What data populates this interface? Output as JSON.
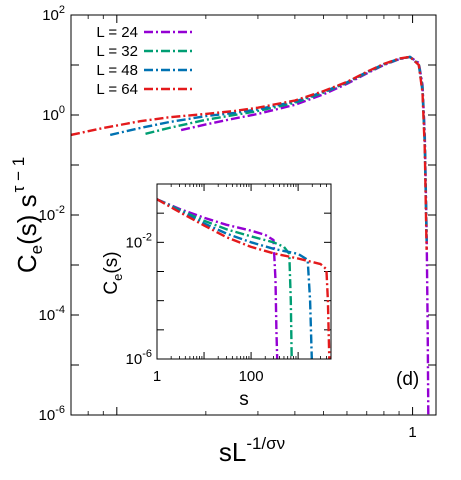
{
  "chart_data": [
    {
      "type": "line",
      "title": "",
      "xlabel": "sL",
      "xlabel_superscript": "-1/σν",
      "ylabel": "C",
      "ylabel_subscript": "e",
      "ylabel_middle": "(s) s",
      "ylabel_superscript": "τ − 1",
      "xscale": "log",
      "yscale": "log",
      "xlim": [
        0.07,
        1.2
      ],
      "ylim": [
        1e-06,
        100
      ],
      "x_tick_labels": [
        {
          "value": 1,
          "label": "1"
        }
      ],
      "y_tick_labels": [
        {
          "value": 100,
          "base": "10",
          "exp": "2"
        },
        {
          "value": 1,
          "base": "10",
          "exp": "0"
        },
        {
          "value": 0.01,
          "base": "10",
          "exp": "-2"
        },
        {
          "value": 0.0001,
          "base": "10",
          "exp": "-4"
        },
        {
          "value": 1e-06,
          "base": "10",
          "exp": "-6"
        }
      ],
      "annotation": "(d)",
      "legend_placement": "top-left",
      "series": [
        {
          "name": "L = 24",
          "color": "#9400d3",
          "x": [
            0.165,
            0.2,
            0.25,
            0.3,
            0.4,
            0.5,
            0.6,
            0.7,
            0.8,
            0.9,
            0.98,
            1.05,
            1.08,
            1.1,
            1.115,
            1.125,
            1.13
          ],
          "y": [
            0.5,
            0.65,
            0.85,
            1.05,
            1.6,
            2.6,
            4.2,
            6.8,
            10,
            13,
            14.5,
            11,
            4,
            0.4,
            0.005,
            5e-05,
            1e-06
          ]
        },
        {
          "name": "L = 32",
          "color": "#009e73",
          "x": [
            0.125,
            0.15,
            0.2,
            0.25,
            0.3,
            0.4,
            0.5,
            0.6,
            0.7,
            0.8,
            0.9,
            0.98,
            1.05,
            1.08,
            1.1,
            1.115
          ],
          "y": [
            0.42,
            0.55,
            0.8,
            1.0,
            1.2,
            1.75,
            2.8,
            4.4,
            7,
            10.2,
            13.2,
            14.5,
            10.5,
            3.5,
            0.3,
            0.004
          ]
        },
        {
          "name": "L = 48",
          "color": "#0072b2",
          "x": [
            0.095,
            0.12,
            0.15,
            0.2,
            0.25,
            0.3,
            0.4,
            0.5,
            0.6,
            0.7,
            0.8,
            0.9,
            0.98,
            1.05,
            1.08,
            1.1,
            1.115
          ],
          "y": [
            0.4,
            0.55,
            0.72,
            0.95,
            1.1,
            1.3,
            1.85,
            2.9,
            4.5,
            7.2,
            10.4,
            13.3,
            14.5,
            10,
            3,
            0.25,
            0.003
          ]
        },
        {
          "name": "L = 64",
          "color": "#e41a1c",
          "x": [
            0.07,
            0.09,
            0.12,
            0.15,
            0.2,
            0.25,
            0.3,
            0.4,
            0.5,
            0.6,
            0.7,
            0.8,
            0.9,
            0.98,
            1.05,
            1.08,
            1.1,
            1.115
          ],
          "y": [
            0.4,
            0.55,
            0.75,
            0.9,
            1.05,
            1.2,
            1.4,
            1.95,
            3.0,
            4.6,
            7.3,
            10.5,
            13.4,
            14.6,
            10,
            2.8,
            0.2,
            0.002
          ]
        }
      ]
    },
    {
      "type": "line",
      "title": "",
      "xlabel": "s",
      "ylabel": "C",
      "ylabel_subscript": "e",
      "ylabel_middle": "(s)",
      "xscale": "log",
      "yscale": "log",
      "xlim": [
        1,
        5000
      ],
      "ylim": [
        1e-06,
        1
      ],
      "x_tick_labels": [
        {
          "value": 1,
          "label": "1"
        },
        {
          "value": 100,
          "label": "100"
        }
      ],
      "y_tick_labels": [
        {
          "value": 0.01,
          "base": "10",
          "exp": "-2"
        },
        {
          "value": 1e-06,
          "base": "10",
          "exp": "-6"
        }
      ],
      "series": [
        {
          "name": "L = 24",
          "color": "#9400d3",
          "x": [
            1,
            3,
            10,
            30,
            100,
            200,
            300,
            330,
            345,
            360
          ],
          "y": [
            0.3,
            0.14,
            0.07,
            0.04,
            0.025,
            0.018,
            0.012,
            0.0005,
            1e-05,
            1e-06
          ]
        },
        {
          "name": "L = 32",
          "color": "#009e73",
          "x": [
            1,
            3,
            10,
            30,
            100,
            300,
            500,
            650,
            700,
            730
          ],
          "y": [
            0.3,
            0.13,
            0.055,
            0.028,
            0.016,
            0.01,
            0.007,
            0.004,
            0.0001,
            1e-06
          ]
        },
        {
          "name": "L = 48",
          "color": "#0072b2",
          "x": [
            1,
            3,
            10,
            30,
            100,
            300,
            1000,
            1600,
            1800,
            1950
          ],
          "y": [
            0.3,
            0.12,
            0.045,
            0.02,
            0.01,
            0.006,
            0.004,
            0.0025,
            0.0001,
            1e-06
          ]
        },
        {
          "name": "L = 64",
          "color": "#e41a1c",
          "x": [
            1,
            3,
            10,
            30,
            100,
            300,
            1000,
            3000,
            4000,
            4300,
            4600
          ],
          "y": [
            0.3,
            0.11,
            0.038,
            0.015,
            0.007,
            0.0042,
            0.0028,
            0.0018,
            0.0012,
            0.0001,
            1e-06
          ]
        }
      ]
    }
  ]
}
